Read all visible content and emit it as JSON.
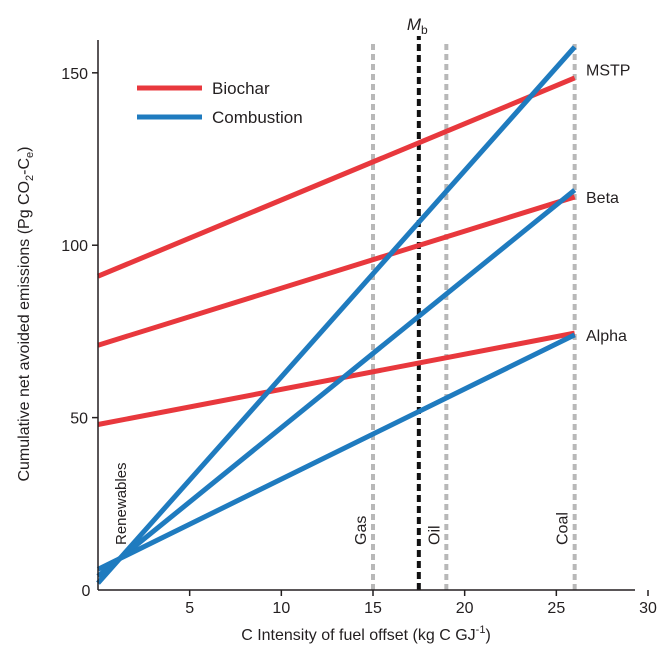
{
  "chart_data": {
    "type": "line",
    "title": "",
    "xlabel": "C Intensity of fuel offset (kg C GJ",
    "xlabel_sup": "-1",
    "xlabel_tail": ")",
    "ylabel_pre": "Cumulative net avoided emissions (Pg CO",
    "ylabel_sub1": "2",
    "ylabel_mid": "-C",
    "ylabel_sub2": "e",
    "ylabel_post": ")",
    "xlim": [
      0,
      30
    ],
    "ylim": [
      0,
      163
    ],
    "xticks": [
      {
        "value": 0,
        "label": "0"
      },
      {
        "value": 5,
        "label": "5"
      },
      {
        "value": 10,
        "label": "10"
      },
      {
        "value": 15,
        "label": "15"
      },
      {
        "value": 20,
        "label": "20"
      },
      {
        "value": 25,
        "label": "25"
      },
      {
        "value": 30,
        "label": "30"
      }
    ],
    "yticks": [
      {
        "value": 50,
        "label": "50"
      },
      {
        "value": 100,
        "label": "100"
      },
      {
        "value": 150,
        "label": "150"
      }
    ],
    "legend": {
      "placement": "top-left",
      "entries": [
        {
          "label": "Biochar",
          "color": "#e8383d"
        },
        {
          "label": "Combustion",
          "color": "#1f7bbf"
        }
      ]
    },
    "series": [
      {
        "group": "Biochar",
        "scenario": "MSTP",
        "color": "#e8383d",
        "x": [
          0,
          26
        ],
        "y": [
          91,
          148.5
        ]
      },
      {
        "group": "Biochar",
        "scenario": "Beta",
        "color": "#e8383d",
        "x": [
          0,
          26
        ],
        "y": [
          71,
          114
        ]
      },
      {
        "group": "Biochar",
        "scenario": "Alpha",
        "color": "#e8383d",
        "x": [
          0,
          26
        ],
        "y": [
          48,
          74.5
        ]
      },
      {
        "group": "Combustion",
        "scenario": "MSTP",
        "color": "#1f7bbf",
        "x": [
          0,
          26
        ],
        "y": [
          2,
          157.5
        ]
      },
      {
        "group": "Combustion",
        "scenario": "Beta",
        "color": "#1f7bbf",
        "x": [
          0,
          26
        ],
        "y": [
          4,
          116
        ]
      },
      {
        "group": "Combustion",
        "scenario": "Alpha",
        "color": "#1f7bbf",
        "x": [
          0,
          26
        ],
        "y": [
          6,
          74
        ]
      }
    ],
    "end_labels": [
      {
        "label": "MSTP",
        "y": 151
      },
      {
        "label": "Beta",
        "y": 114
      },
      {
        "label": "Alpha",
        "y": 74
      }
    ],
    "reference_lines": [
      {
        "x": 15,
        "label": "Gas",
        "style": "dotted",
        "color": "#b8b8b8"
      },
      {
        "x": 19,
        "label": "Oil",
        "style": "dotted",
        "color": "#b8b8b8"
      },
      {
        "x": 26,
        "label": "Coal",
        "style": "dotted",
        "color": "#b8b8b8"
      },
      {
        "x": 17.5,
        "label": "M",
        "label_sub": "b",
        "style": "dashed",
        "color": "#111111"
      }
    ],
    "annotations": [
      {
        "text": "Renewables",
        "x": 0.1,
        "y": 20
      }
    ],
    "grid": false
  }
}
